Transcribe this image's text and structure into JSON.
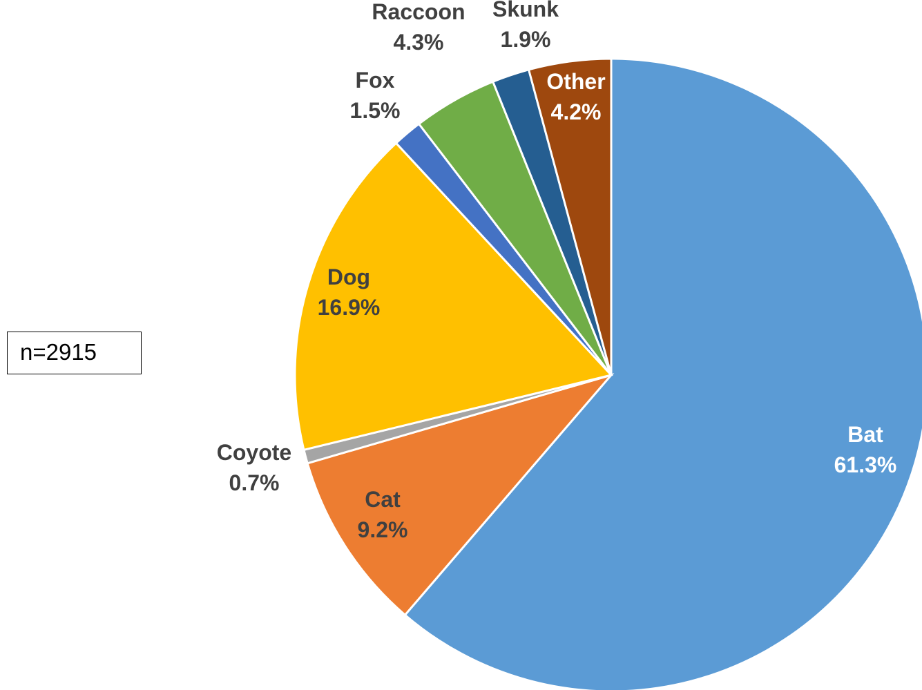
{
  "sample_label": "n=2915",
  "chart_data": {
    "type": "pie",
    "title": "",
    "start": "12 o'clock",
    "direction": "clockwise",
    "slices": [
      {
        "label": "Bat",
        "value": 61.3,
        "pct_text": "61.3%",
        "color": "#5B9BD5",
        "text_color": "#ffffff"
      },
      {
        "label": "Cat",
        "value": 9.2,
        "pct_text": "9.2%",
        "color": "#ED7D31",
        "text_color": "#404040"
      },
      {
        "label": "Coyote",
        "value": 0.7,
        "pct_text": "0.7%",
        "color": "#A5A5A5",
        "text_color": "#404040"
      },
      {
        "label": "Dog",
        "value": 16.9,
        "pct_text": "16.9%",
        "color": "#FFC000",
        "text_color": "#404040"
      },
      {
        "label": "Fox",
        "value": 1.5,
        "pct_text": "1.5%",
        "color": "#4472C4",
        "text_color": "#404040"
      },
      {
        "label": "Raccoon",
        "value": 4.3,
        "pct_text": "4.3%",
        "color": "#70AD47",
        "text_color": "#404040"
      },
      {
        "label": "Skunk",
        "value": 1.9,
        "pct_text": "1.9%",
        "color": "#255E91",
        "text_color": "#404040"
      },
      {
        "label": "Other",
        "value": 4.2,
        "pct_text": "4.2%",
        "color": "#9E480E",
        "text_color": "#ffffff"
      }
    ]
  }
}
